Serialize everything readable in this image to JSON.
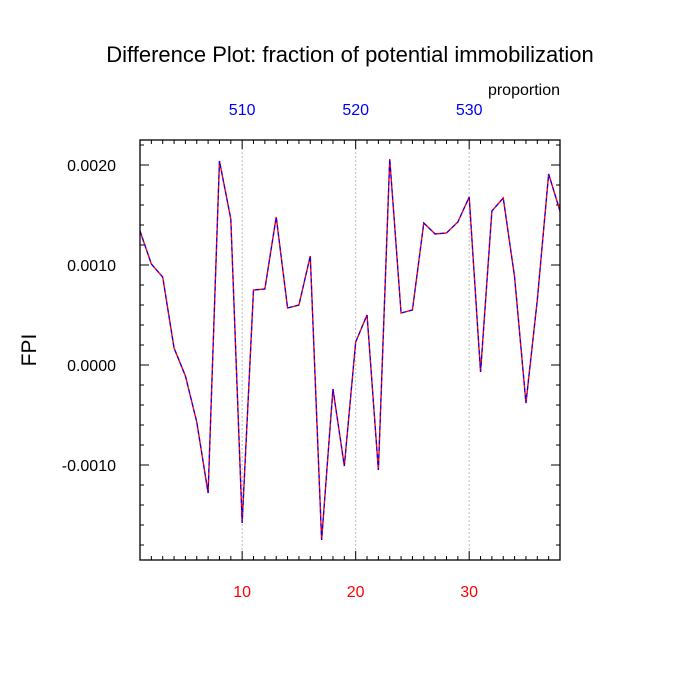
{
  "colors": {
    "bottom_ticks": "#ff0000",
    "top_ticks": "#0000ff",
    "line_outer": "#ff0000",
    "line_inner": "#0000ff",
    "grid": "#bbbbbb"
  },
  "chart_data": {
    "type": "line",
    "title": "Difference Plot: fraction of potential immobilization",
    "top_axis_title": "proportion",
    "ylabel": "FPI",
    "xlabel": "",
    "xlim": [
      1,
      38
    ],
    "ylim": [
      -0.00195,
      0.00225
    ],
    "bottom_xticks": [
      10,
      20,
      30
    ],
    "bottom_xtick_labels": [
      "10",
      "20",
      "30"
    ],
    "top_xticks": [
      10,
      20,
      30
    ],
    "top_xtick_labels": [
      "510",
      "520",
      "530"
    ],
    "yticks": [
      0.002,
      0.001,
      0.0,
      -0.001
    ],
    "ytick_labels": [
      "0.0020",
      "0.0010",
      "0.0000",
      "-0.0010"
    ],
    "grid": "vertical dotted lines at labeled x ticks",
    "line_style": "dashed",
    "series": [
      {
        "x": [
          1,
          2,
          3,
          4,
          5,
          6,
          7,
          8,
          9,
          10,
          11,
          12,
          13,
          14,
          15,
          16,
          17,
          18,
          19,
          20,
          21,
          22,
          23,
          24,
          25,
          26,
          27,
          28,
          29,
          30,
          31,
          32,
          33,
          34,
          35,
          36,
          37,
          38
        ],
        "values": [
          0.00134,
          0.00101,
          0.00088,
          0.00017,
          -0.00011,
          -0.00057,
          -0.00128,
          0.00204,
          0.00146,
          -0.00158,
          0.00075,
          0.00076,
          0.00148,
          0.00057,
          0.0006,
          0.00109,
          -0.00175,
          -0.00024,
          -0.00101,
          0.00023,
          0.0005,
          -0.00105,
          0.00206,
          0.00052,
          0.00055,
          0.00142,
          0.00131,
          0.00132,
          0.00143,
          0.00168,
          -7e-05,
          0.00154,
          0.00167,
          0.00088,
          -0.00038,
          0.00065,
          0.00191,
          0.00154
        ]
      }
    ]
  }
}
